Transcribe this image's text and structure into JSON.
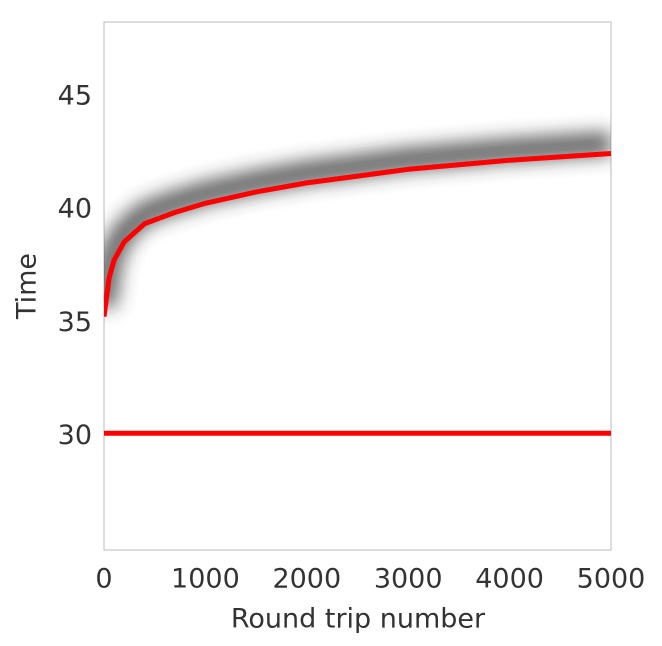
{
  "chart_data": {
    "type": "line",
    "x_label": "Round trip number",
    "y_label": "Time",
    "xlim": [
      0,
      5000
    ],
    "xticks": [
      0,
      1000,
      2000,
      3000,
      4000,
      5000
    ],
    "ylim": [
      25,
      48.3
    ],
    "yticks": [
      30,
      35,
      40,
      45
    ],
    "grid": false,
    "series": [
      {
        "color": "#ff0000",
        "x": [
          0,
          50,
          100,
          200,
          400,
          700,
          1000,
          1500,
          2000,
          2500,
          3000,
          3500,
          4000,
          4500,
          5000
        ],
        "values": [
          35.3,
          37.0,
          37.8,
          38.6,
          39.4,
          39.9,
          40.3,
          40.8,
          41.2,
          41.5,
          41.8,
          42.0,
          42.2,
          42.35,
          42.5
        ]
      },
      {
        "color": "#ff0000",
        "x": [
          0,
          5000
        ],
        "values": [
          30.15,
          30.15
        ]
      }
    ]
  }
}
